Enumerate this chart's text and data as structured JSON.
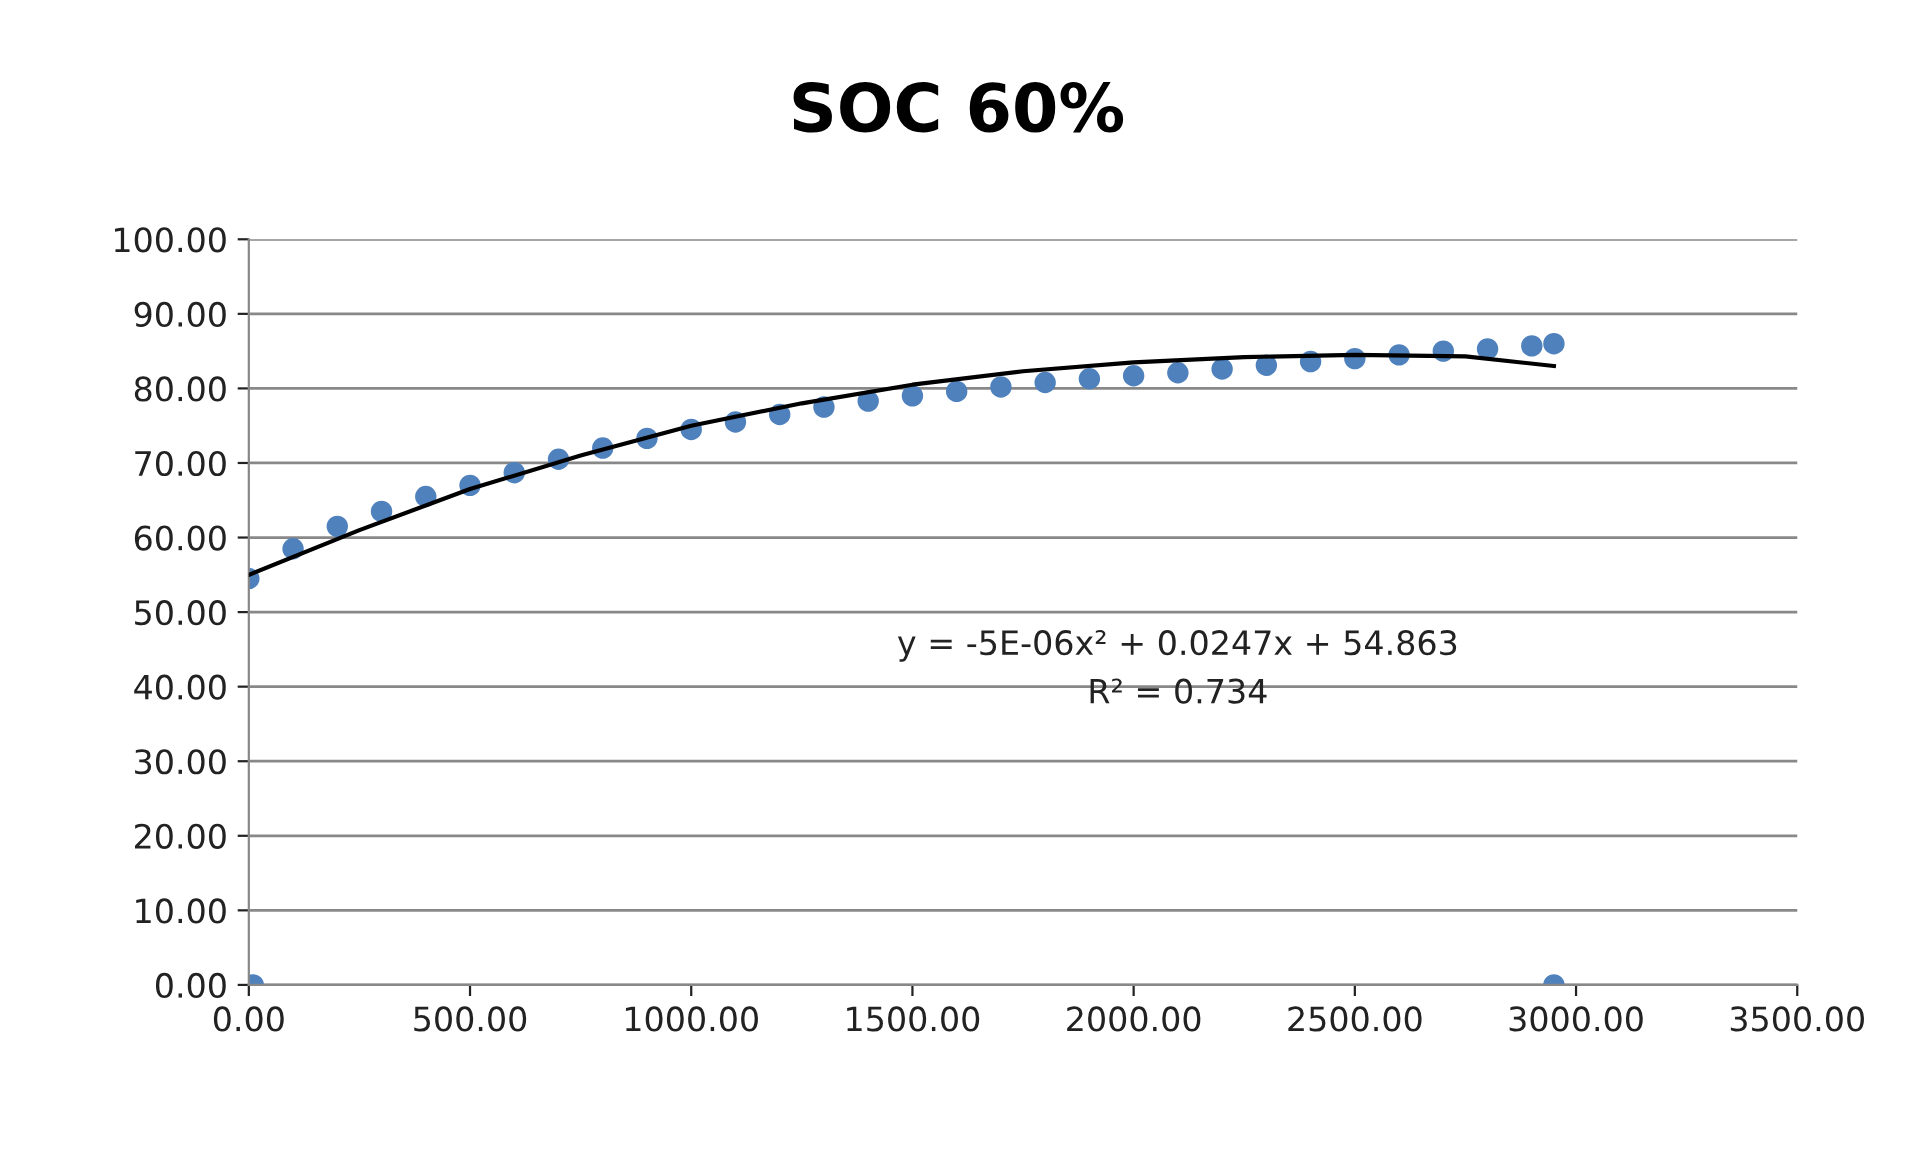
{
  "chart_data": {
    "type": "scatter",
    "title": "SOC 60%",
    "series": [
      {
        "color": "#4f81bd",
        "marker": "circle",
        "x": [
          10,
          2950,
          0,
          100,
          200,
          300,
          400,
          500,
          600,
          700,
          800,
          900,
          1000,
          1100,
          1200,
          1300,
          1400,
          1500,
          1600,
          1700,
          1800,
          1900,
          2000,
          2100,
          2200,
          2300,
          2400,
          2500,
          2600,
          2700,
          2800,
          2900,
          2950
        ],
        "values": [
          0,
          0,
          54.5,
          58.5,
          61.5,
          63.5,
          65.5,
          67,
          68.7,
          70.5,
          72,
          73.3,
          74.5,
          75.5,
          76.5,
          77.5,
          78.3,
          79,
          79.6,
          80.2,
          80.8,
          81.3,
          81.7,
          82.1,
          82.6,
          83.1,
          83.6,
          84,
          84.5,
          85,
          85.3,
          85.7,
          86
        ]
      },
      {
        "type": "line",
        "color": "#000000",
        "marker": "none",
        "line_style": "solid",
        "x": [
          0,
          250,
          500,
          750,
          1000,
          1250,
          1500,
          1750,
          2000,
          2250,
          2500,
          2750,
          2950
        ],
        "values": [
          55,
          61,
          66.5,
          71,
          75,
          78,
          80.5,
          82.3,
          83.5,
          84.2,
          84.5,
          84.3,
          83
        ]
      }
    ],
    "xlim": [
      0,
      3500
    ],
    "ylim": [
      0,
      100
    ],
    "xticks": [
      {
        "value": 0,
        "label": "0.00"
      },
      {
        "value": 500,
        "label": "500.00"
      },
      {
        "value": 1000,
        "label": "1000.00"
      },
      {
        "value": 1500,
        "label": "1500.00"
      },
      {
        "value": 2000,
        "label": "2000.00"
      },
      {
        "value": 2500,
        "label": "2500.00"
      },
      {
        "value": 3000,
        "label": "3000.00"
      },
      {
        "value": 3500,
        "label": "3500.00"
      }
    ],
    "yticks": [
      {
        "value": 0,
        "label": "0.00"
      },
      {
        "value": 10,
        "label": "10.00"
      },
      {
        "value": 20,
        "label": "20.00"
      },
      {
        "value": 30,
        "label": "30.00"
      },
      {
        "value": 40,
        "label": "40.00"
      },
      {
        "value": 50,
        "label": "50.00"
      },
      {
        "value": 60,
        "label": "60.00"
      },
      {
        "value": 70,
        "label": "70.00"
      },
      {
        "value": 80,
        "label": "80.00"
      },
      {
        "value": 90,
        "label": "90.00"
      },
      {
        "value": 100,
        "label": "100.00"
      }
    ],
    "grid": "y",
    "legend": false,
    "annotations": [
      "y = -5E-06x² + 0.0247x + 54.863",
      "R² = 0.734"
    ]
  }
}
